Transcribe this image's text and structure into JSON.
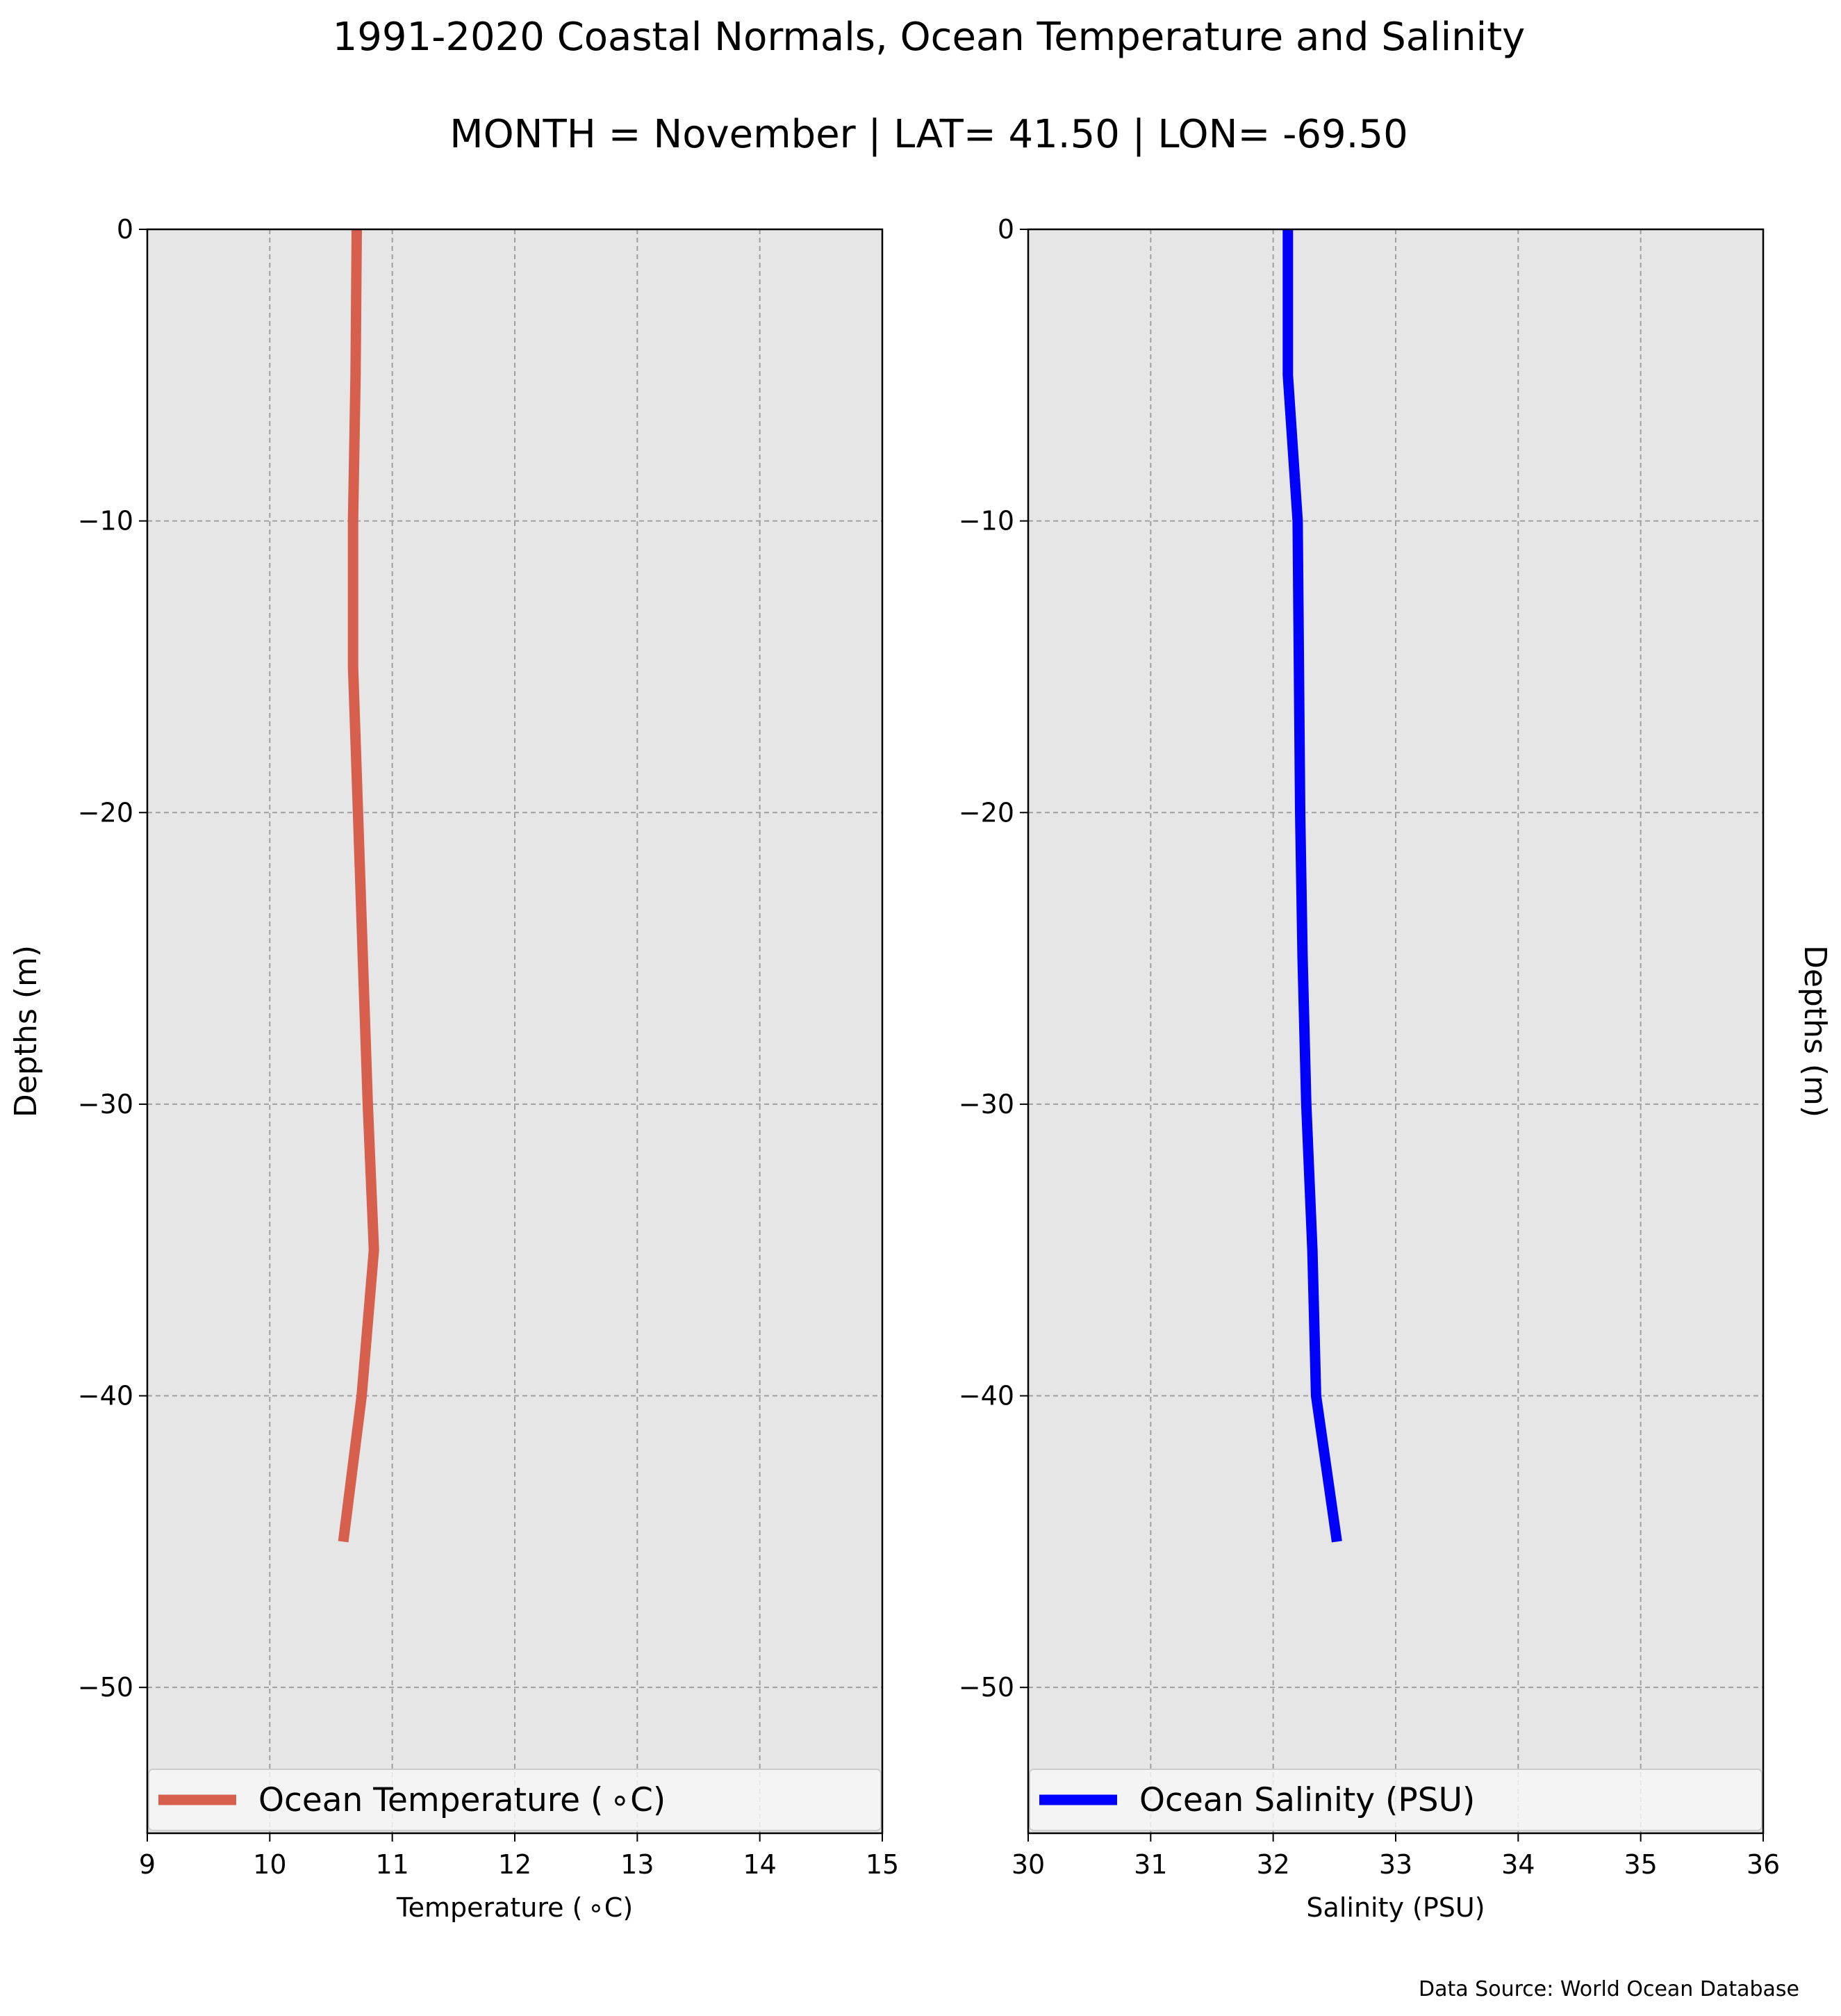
{
  "title": "1991-2020 Coastal Normals, Ocean Temperature and Salinity",
  "subtitle": "MONTH = November | LAT= 41.50 | LON= -69.50",
  "source_note": "Data Source: World Ocean Database",
  "colors": {
    "axes_background": "#e6e6e6",
    "grid": "#a0a0a0",
    "temperature_line": "#d6604d",
    "salinity_line": "#0000ff",
    "legend_background": "#f8f8f8"
  },
  "chart_data": [
    {
      "type": "line",
      "xlabel": "Temperature ( ∘C)",
      "ylabel": "Depths (m)",
      "ylabel_side": "left",
      "xlim": [
        9,
        15
      ],
      "ylim": [
        -55,
        0
      ],
      "xticks": [
        "9",
        "10",
        "11",
        "12",
        "13",
        "14",
        "15"
      ],
      "yticks": [
        "0",
        "−10",
        "−20",
        "−30",
        "−40",
        "−50"
      ],
      "grid": true,
      "legend_placement": "lower-center",
      "series": [
        {
          "name": "Ocean Temperature ( ∘C)",
          "color": "#d6604d",
          "x": [
            10.71,
            10.7,
            10.68,
            10.68,
            10.72,
            10.76,
            10.8,
            10.85,
            10.75,
            10.6
          ],
          "y": [
            0,
            -5,
            -10,
            -15,
            -20,
            -25,
            -30,
            -35,
            -40,
            -45
          ]
        }
      ]
    },
    {
      "type": "line",
      "xlabel": "Salinity (PSU)",
      "ylabel": "Depths (m)",
      "ylabel_side": "right",
      "xlim": [
        30,
        36
      ],
      "ylim": [
        -55,
        0
      ],
      "xticks": [
        "30",
        "31",
        "32",
        "33",
        "34",
        "35",
        "36"
      ],
      "yticks": [
        "0",
        "−10",
        "−20",
        "−30",
        "−40",
        "−50"
      ],
      "grid": true,
      "legend_placement": "lower-center",
      "series": [
        {
          "name": "Ocean Salinity (PSU)",
          "color": "#0000ff",
          "x": [
            32.12,
            32.12,
            32.2,
            32.21,
            32.22,
            32.24,
            32.27,
            32.32,
            32.35,
            32.52
          ],
          "y": [
            0,
            -5,
            -10,
            -15,
            -20,
            -25,
            -30,
            -35,
            -40,
            -45
          ]
        }
      ]
    }
  ]
}
